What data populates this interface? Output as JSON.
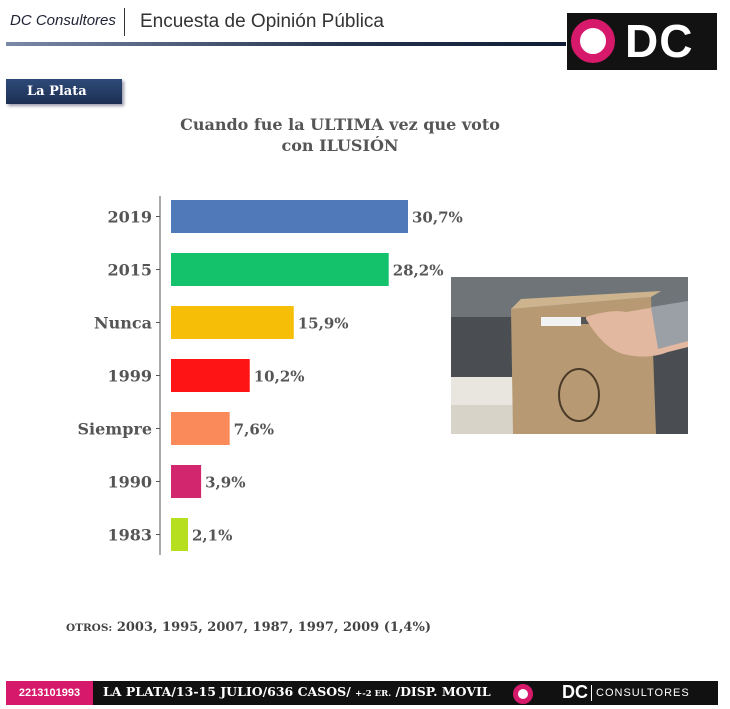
{
  "header": {
    "brand": "DC Consultores",
    "title": "Encuesta de Opinión Pública",
    "logo_text": "DC"
  },
  "region": "La Plata",
  "chart_data": {
    "type": "bar",
    "orientation": "horizontal",
    "title_line1": "Cuando fue la ULTIMA vez que voto",
    "title_line2": "con ILUSIÓN",
    "categories": [
      "2019",
      "2015",
      "Nunca",
      "1999",
      "Siempre",
      "1990",
      "1983"
    ],
    "values": [
      30.7,
      28.2,
      15.9,
      10.2,
      7.6,
      3.9,
      2.1
    ],
    "value_labels": [
      "30,7%",
      "28,2%",
      "15,9%",
      "10,2%",
      "7,6%",
      "3,9%",
      "2,1%"
    ],
    "colors": [
      "#4f79b9",
      "#13c26a",
      "#f6be06",
      "#ff1416",
      "#fa8a59",
      "#d2266f",
      "#b6e01f"
    ],
    "grid": false,
    "legend": "none"
  },
  "others": {
    "lead": "OTROS:",
    "text": "2003, 1995, 2007, 1987, 1997, 2009 (1,4%)"
  },
  "footer": {
    "phone": "2213101993",
    "info_main": "LA PLATA/13-15 JULIO/636 CASOS/",
    "info_err": "+-2 ER.",
    "info_tail": "/DISP. MOVIL",
    "logo_dc": "DC",
    "logo_cons": "CONSULTORES"
  },
  "colors": {
    "magenta": "#d7196b",
    "navy": "#1c2f52"
  },
  "photo": {
    "icon": "ballot-box-photo"
  }
}
